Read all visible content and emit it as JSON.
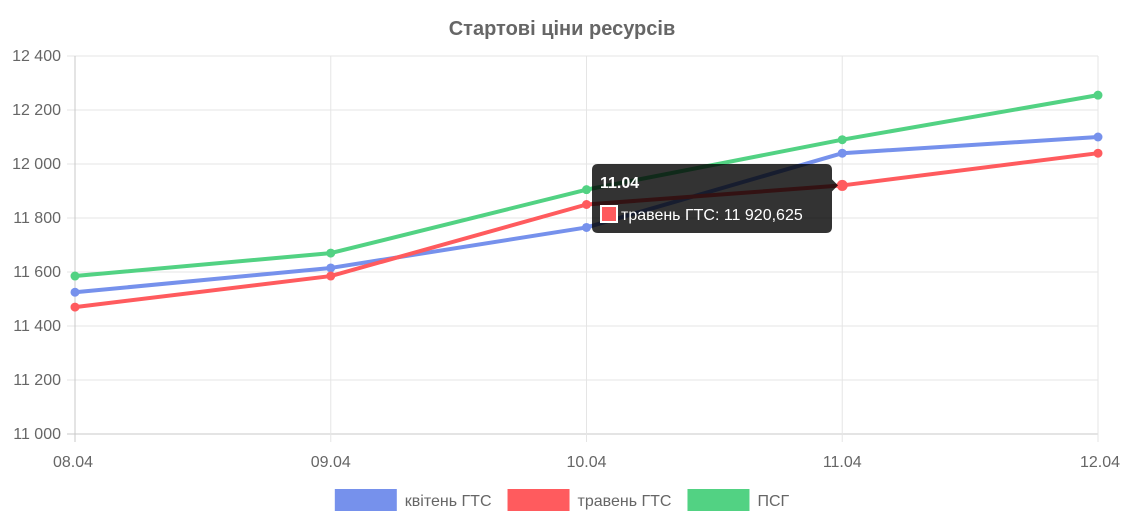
{
  "chart_data": {
    "type": "line",
    "title": "Стартові ціни ресурсів",
    "categories": [
      "08.04",
      "09.04",
      "10.04",
      "11.04",
      "12.04"
    ],
    "y_ticks": [
      "12 400",
      "12 200",
      "12 000",
      "11 800",
      "11 600",
      "11 400",
      "11 200",
      "11 000"
    ],
    "ylim": [
      11000,
      12400
    ],
    "grid": true,
    "legend_position": "bottom",
    "series": [
      {
        "name": "квітень ГТС",
        "color": "#7691ec",
        "values": [
          11525,
          11615,
          11765,
          12040,
          12100
        ]
      },
      {
        "name": "травень ГТС",
        "color": "#ff5b5e",
        "values": [
          11470,
          11585,
          11850,
          11920.625,
          12040
        ]
      },
      {
        "name": "ПСГ",
        "color": "#52d283",
        "values": [
          11585,
          11670,
          11905,
          12090,
          12255
        ]
      }
    ],
    "tooltip": {
      "title": "11.04",
      "label": "травень ГТС: 11 920,625",
      "series_index": 1,
      "point_index": 3
    }
  }
}
